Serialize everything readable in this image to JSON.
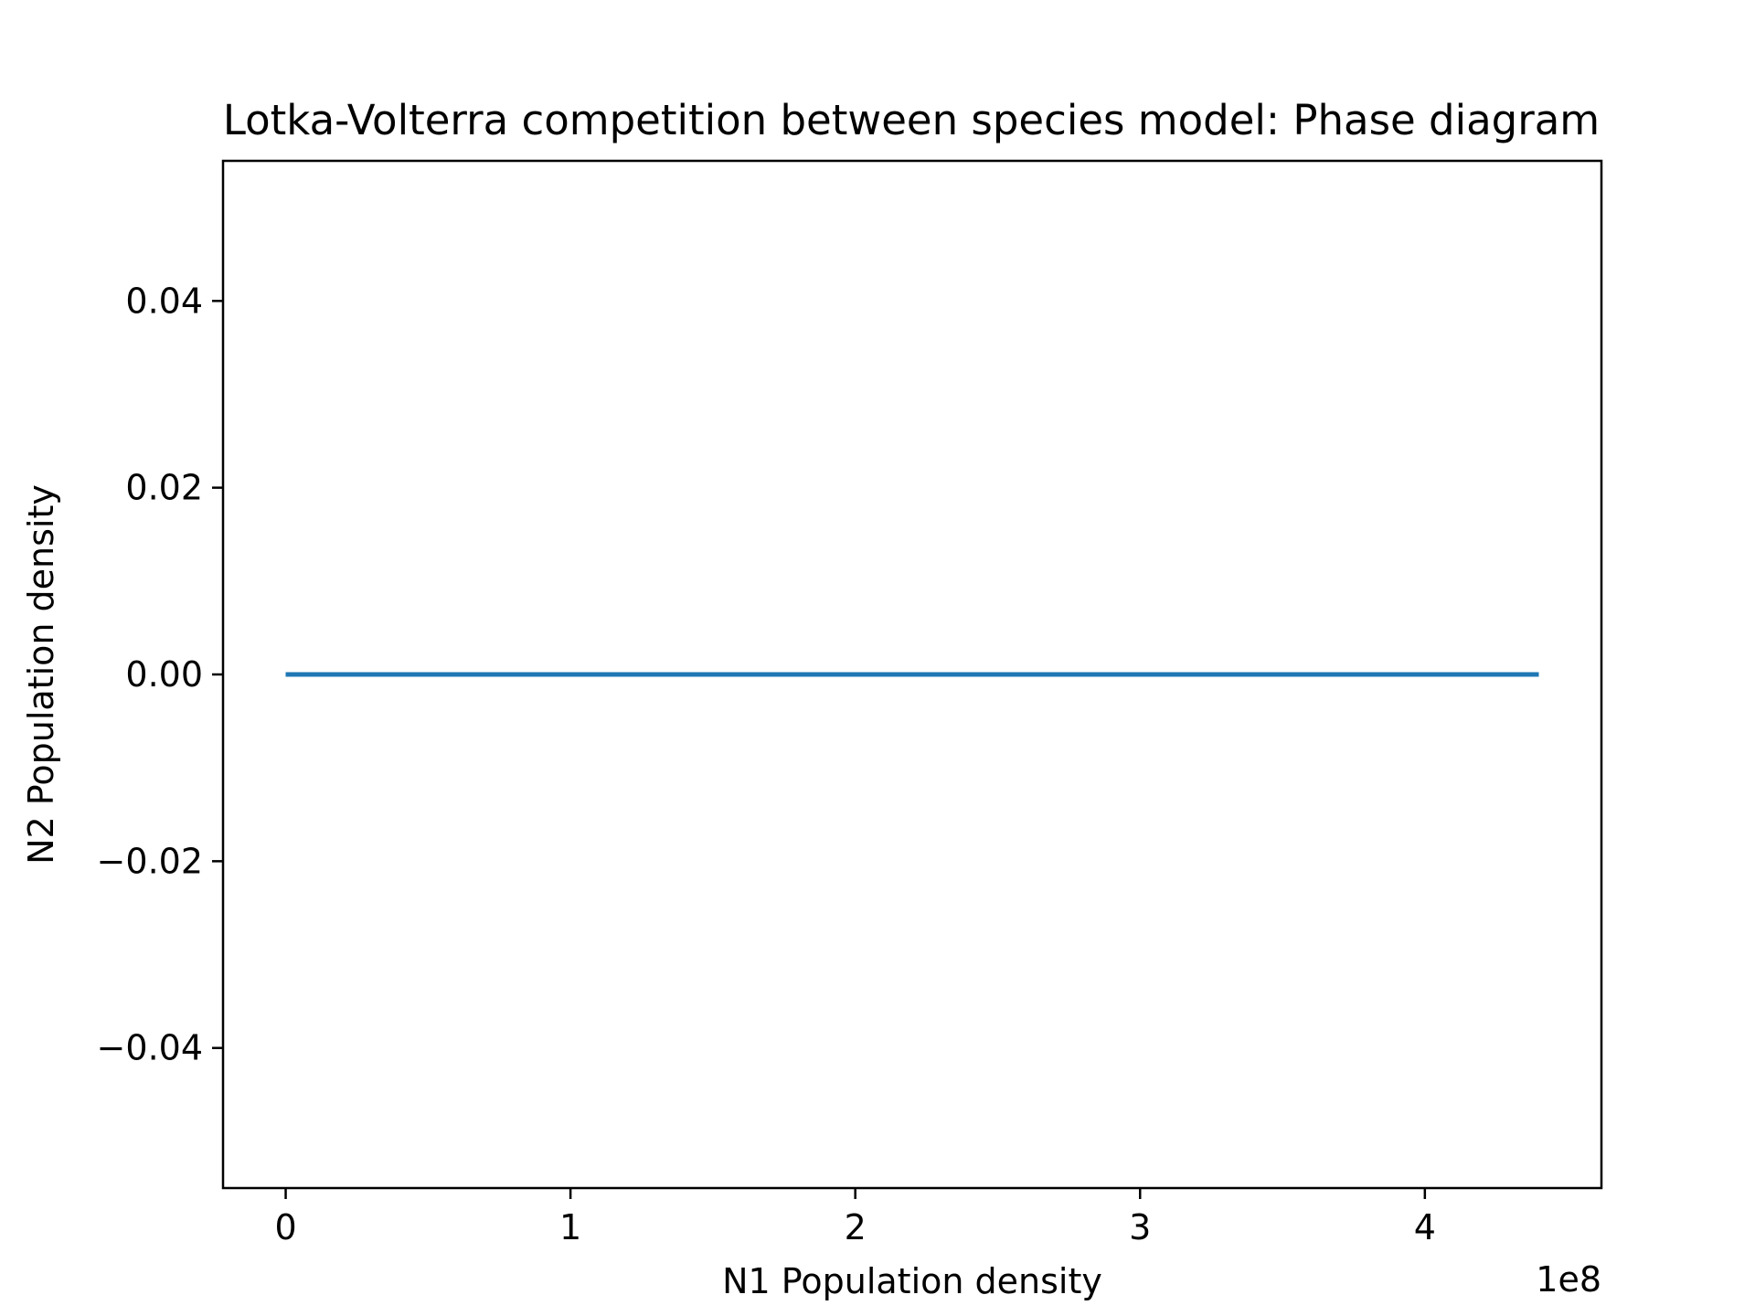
{
  "chart_data": {
    "type": "line",
    "title": "Lotka-Volterra competition between species model: Phase diagram",
    "xlabel": "N1 Population density",
    "ylabel": "N2 Population density",
    "x_offset_label": "1e8",
    "xlim": [
      -0.22,
      4.62
    ],
    "ylim": [
      -0.055,
      0.055
    ],
    "x_ticks": [
      0,
      1,
      2,
      3,
      4
    ],
    "x_tick_labels": [
      "0",
      "1",
      "2",
      "3",
      "4"
    ],
    "y_ticks": [
      0.04,
      0.02,
      0.0,
      -0.02,
      -0.04
    ],
    "y_tick_labels": [
      "0.04",
      "0.02",
      "0.00",
      "−0.02",
      "−0.04"
    ],
    "grid": false,
    "series": [
      {
        "color": "#1f77b4",
        "x": [
          0.0,
          4.4
        ],
        "y": [
          0.0,
          0.0
        ]
      }
    ]
  }
}
